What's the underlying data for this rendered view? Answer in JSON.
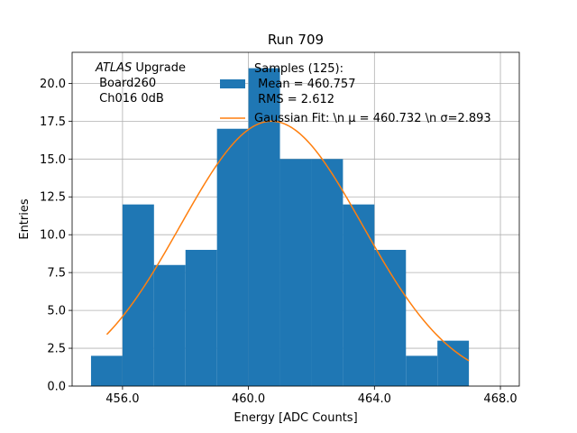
{
  "chart_data": {
    "type": "bar",
    "title": "Run 709",
    "xlabel": "Energy [ADC Counts]",
    "ylabel": "Entries",
    "xlim": [
      454.4,
      468.6
    ],
    "ylim": [
      0,
      22.05
    ],
    "grid": true,
    "x_ticks": [
      456.0,
      460.0,
      464.0,
      468.0
    ],
    "x_tick_labels": [
      "456.0",
      "460.0",
      "464.0",
      "468.0"
    ],
    "y_ticks": [
      0,
      2.5,
      5,
      7.5,
      10,
      12.5,
      15,
      17.5,
      20
    ],
    "y_tick_labels": [
      "0.0",
      "2.5",
      "5.0",
      "7.5",
      "10.0",
      "12.5",
      "15.0",
      "17.5",
      "20.0"
    ],
    "histogram": {
      "name": "Samples",
      "color": "#1f77b4",
      "bin_edges": [
        455,
        456,
        457,
        458,
        459,
        460,
        461,
        462,
        463,
        464,
        465,
        466,
        467
      ],
      "counts": [
        2,
        12,
        8,
        9,
        17,
        21,
        15,
        15,
        12,
        9,
        2,
        3
      ]
    },
    "fit": {
      "name": "Gaussian Fit",
      "color": "#ff7f0e",
      "mu": 460.732,
      "sigma": 2.893,
      "amplitude": 17.5,
      "x_range": [
        455.5,
        467.0
      ]
    },
    "annotation": {
      "italic": "ATLAS",
      "line1_rest": " Upgrade",
      "line2": " Board260",
      "line3": " Ch016 0dB"
    },
    "legend": {
      "location": "top-right",
      "hist_line1": "Samples (125):",
      "hist_line2": " Mean = 460.757",
      "hist_line3": " RMS = 2.612",
      "fit_label": "Gaussian Fit: \\n μ = 460.732 \\n σ=2.893"
    }
  }
}
